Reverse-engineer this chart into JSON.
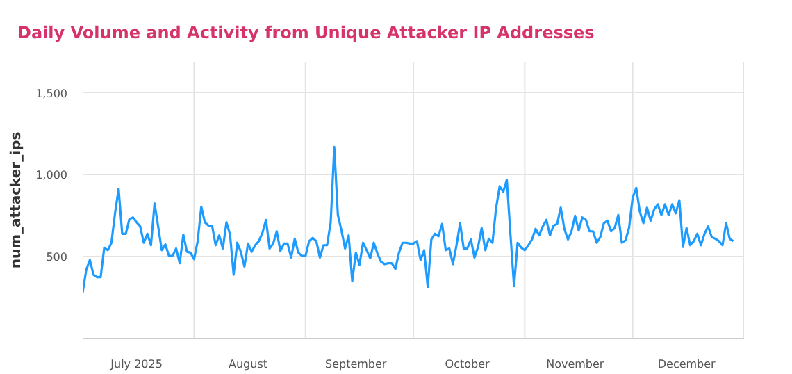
{
  "chart_data": {
    "type": "line",
    "title": "Daily Volume and Activity from Unique Attacker IP Addresses",
    "ylabel": "num_attacker_ips",
    "xlim": [
      "2025-07-01",
      "2026-01-01"
    ],
    "xticks": [
      {
        "value": "2025-07-01",
        "label": null
      },
      {
        "value": "2025-08-01",
        "label": null
      },
      {
        "value": "2025-09-01",
        "label": null
      },
      {
        "value": "2025-10-01",
        "label": null
      },
      {
        "value": "2025-11-01",
        "label": null
      },
      {
        "value": "2025-12-01",
        "label": null
      },
      {
        "value": "2026-01-01",
        "label": null
      },
      {
        "value": "2025-07-16",
        "label": "July 2025"
      },
      {
        "value": "2025-08-16",
        "label": "August"
      },
      {
        "value": "2025-09-15",
        "label": "September"
      },
      {
        "value": "2025-10-16",
        "label": "October"
      },
      {
        "value": "2025-11-15",
        "label": "November"
      },
      {
        "value": "2025-12-16",
        "label": "December"
      }
    ],
    "ylim": [
      0,
      1690
    ],
    "yticks": [
      {
        "value": 500,
        "label": "500"
      },
      {
        "value": 1000,
        "label": "1,000"
      },
      {
        "value": 1500,
        "label": "1,500"
      }
    ],
    "grid": true,
    "marker": "none",
    "line_style": "solid",
    "series": [
      {
        "color": "#1e9bff",
        "x": [
          "2025-07-01",
          "2025-07-02",
          "2025-07-03",
          "2025-07-04",
          "2025-07-05",
          "2025-07-06",
          "2025-07-07",
          "2025-07-08",
          "2025-07-09",
          "2025-07-10",
          "2025-07-11",
          "2025-07-12",
          "2025-07-13",
          "2025-07-14",
          "2025-07-15",
          "2025-07-16",
          "2025-07-17",
          "2025-07-18",
          "2025-07-19",
          "2025-07-20",
          "2025-07-21",
          "2025-07-22",
          "2025-07-23",
          "2025-07-24",
          "2025-07-25",
          "2025-07-26",
          "2025-07-27",
          "2025-07-28",
          "2025-07-29",
          "2025-07-30",
          "2025-07-31",
          "2025-08-01",
          "2025-08-02",
          "2025-08-03",
          "2025-08-04",
          "2025-08-05",
          "2025-08-06",
          "2025-08-07",
          "2025-08-08",
          "2025-08-09",
          "2025-08-10",
          "2025-08-11",
          "2025-08-12",
          "2025-08-13",
          "2025-08-14",
          "2025-08-15",
          "2025-08-16",
          "2025-08-17",
          "2025-08-18",
          "2025-08-19",
          "2025-08-20",
          "2025-08-21",
          "2025-08-22",
          "2025-08-23",
          "2025-08-24",
          "2025-08-25",
          "2025-08-26",
          "2025-08-27",
          "2025-08-28",
          "2025-08-29",
          "2025-08-30",
          "2025-08-31",
          "2025-09-01",
          "2025-09-02",
          "2025-09-03",
          "2025-09-04",
          "2025-09-05",
          "2025-09-06",
          "2025-09-07",
          "2025-09-08",
          "2025-09-09",
          "2025-09-10",
          "2025-09-11",
          "2025-09-12",
          "2025-09-13",
          "2025-09-14",
          "2025-09-15",
          "2025-09-16",
          "2025-09-17",
          "2025-09-18",
          "2025-09-19",
          "2025-09-20",
          "2025-09-21",
          "2025-09-22",
          "2025-09-23",
          "2025-09-24",
          "2025-09-25",
          "2025-09-26",
          "2025-09-27",
          "2025-09-28",
          "2025-09-29",
          "2025-09-30",
          "2025-10-01",
          "2025-10-02",
          "2025-10-03",
          "2025-10-04",
          "2025-10-05",
          "2025-10-06",
          "2025-10-07",
          "2025-10-08",
          "2025-10-09",
          "2025-10-10",
          "2025-10-11",
          "2025-10-12",
          "2025-10-13",
          "2025-10-14",
          "2025-10-15",
          "2025-10-16",
          "2025-10-17",
          "2025-10-18",
          "2025-10-19",
          "2025-10-20",
          "2025-10-21",
          "2025-10-22",
          "2025-10-23",
          "2025-10-24",
          "2025-10-25",
          "2025-10-26",
          "2025-10-27",
          "2025-10-28",
          "2025-10-29",
          "2025-10-30",
          "2025-10-31",
          "2025-11-01",
          "2025-11-02",
          "2025-11-03",
          "2025-11-04",
          "2025-11-05",
          "2025-11-06",
          "2025-11-07",
          "2025-11-08",
          "2025-11-09",
          "2025-11-10",
          "2025-11-11",
          "2025-11-12",
          "2025-11-13",
          "2025-11-14",
          "2025-11-15",
          "2025-11-16",
          "2025-11-17",
          "2025-11-18",
          "2025-11-19",
          "2025-11-20",
          "2025-11-21",
          "2025-11-22",
          "2025-11-23",
          "2025-11-24",
          "2025-11-25",
          "2025-11-26",
          "2025-11-27",
          "2025-11-28",
          "2025-11-29",
          "2025-11-30",
          "2025-12-01",
          "2025-12-02",
          "2025-12-03",
          "2025-12-04",
          "2025-12-05",
          "2025-12-06",
          "2025-12-07",
          "2025-12-08",
          "2025-12-09",
          "2025-12-10",
          "2025-12-11",
          "2025-12-12",
          "2025-12-13",
          "2025-12-14",
          "2025-12-15",
          "2025-12-16",
          "2025-12-17",
          "2025-12-18",
          "2025-12-19",
          "2025-12-20",
          "2025-12-21",
          "2025-12-22",
          "2025-12-23",
          "2025-12-24",
          "2025-12-25",
          "2025-12-26",
          "2025-12-27",
          "2025-12-28",
          "2025-12-29"
        ],
        "values": [
          280,
          420,
          480,
          390,
          375,
          375,
          555,
          540,
          585,
          765,
          915,
          640,
          640,
          730,
          740,
          710,
          685,
          585,
          640,
          570,
          825,
          685,
          540,
          575,
          505,
          505,
          550,
          460,
          635,
          530,
          525,
          485,
          595,
          805,
          710,
          690,
          690,
          570,
          630,
          550,
          710,
          635,
          390,
          585,
          530,
          440,
          580,
          530,
          570,
          595,
          645,
          725,
          550,
          580,
          655,
          535,
          580,
          580,
          495,
          610,
          525,
          505,
          505,
          595,
          615,
          595,
          495,
          570,
          570,
          710,
          1170,
          755,
          660,
          550,
          630,
          350,
          525,
          450,
          585,
          540,
          490,
          585,
          520,
          470,
          455,
          460,
          460,
          425,
          525,
          585,
          585,
          580,
          580,
          595,
          480,
          540,
          315,
          605,
          640,
          625,
          700,
          540,
          550,
          455,
          570,
          705,
          550,
          550,
          605,
          495,
          560,
          675,
          540,
          610,
          585,
          795,
          930,
          895,
          970,
          640,
          320,
          585,
          555,
          540,
          570,
          605,
          670,
          630,
          685,
          725,
          630,
          690,
          700,
          800,
          670,
          605,
          655,
          750,
          660,
          740,
          725,
          655,
          655,
          585,
          620,
          705,
          720,
          655,
          675,
          755,
          585,
          600,
          675,
          860,
          920,
          775,
          705,
          800,
          720,
          790,
          820,
          755,
          820,
          755,
          820,
          765,
          845,
          560,
          675,
          570,
          595,
          640,
          570,
          640,
          685,
          620,
          610,
          595,
          570,
          705,
          610,
          595
        ]
      }
    ]
  }
}
